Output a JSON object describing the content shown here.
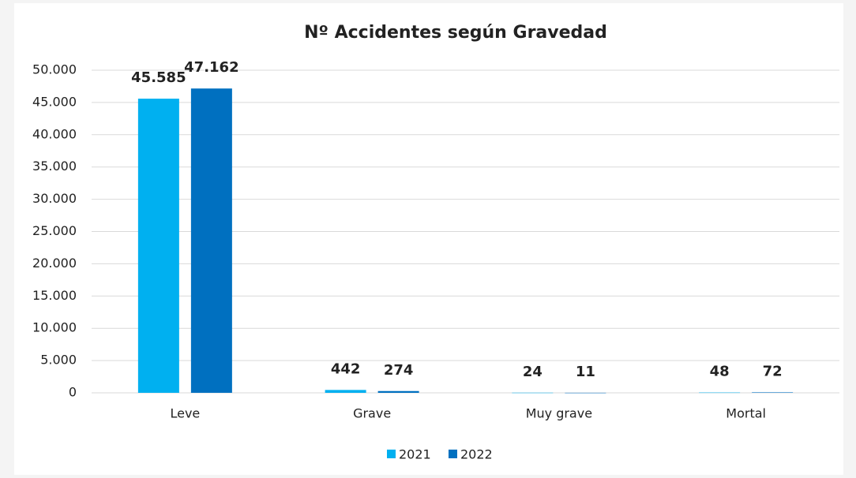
{
  "chart_data": {
    "type": "bar",
    "title": "Nº Accidentes según Gravedad",
    "categories": [
      "Leve",
      "Grave",
      "Muy grave",
      "Mortal"
    ],
    "series": [
      {
        "name": "2021",
        "color": "#00b0f0",
        "values": [
          45585,
          442,
          24,
          48
        ],
        "value_labels": [
          "45.585",
          "442",
          "24",
          "48"
        ]
      },
      {
        "name": "2022",
        "color": "#0070c0",
        "values": [
          47162,
          274,
          11,
          72
        ],
        "value_labels": [
          "47.162",
          "274",
          "11",
          "72"
        ]
      }
    ],
    "ylim": [
      0,
      50000
    ],
    "yticks": [
      0,
      {
        "value": 5000,
        "label": "5.000"
      },
      {
        "value": 10000,
        "label": "10.000"
      },
      {
        "value": 15000,
        "label": "15.000"
      },
      {
        "value": 20000,
        "label": "20.000"
      },
      {
        "value": 25000,
        "label": "25.000"
      },
      {
        "value": 30000,
        "label": "30.000"
      },
      {
        "value": 35000,
        "label": "35.000"
      },
      {
        "value": 40000,
        "label": "40.000"
      },
      {
        "value": 45000,
        "label": "45.000"
      },
      {
        "value": 50000,
        "label": "50.000"
      }
    ],
    "grid": true,
    "legend": "bottom"
  }
}
